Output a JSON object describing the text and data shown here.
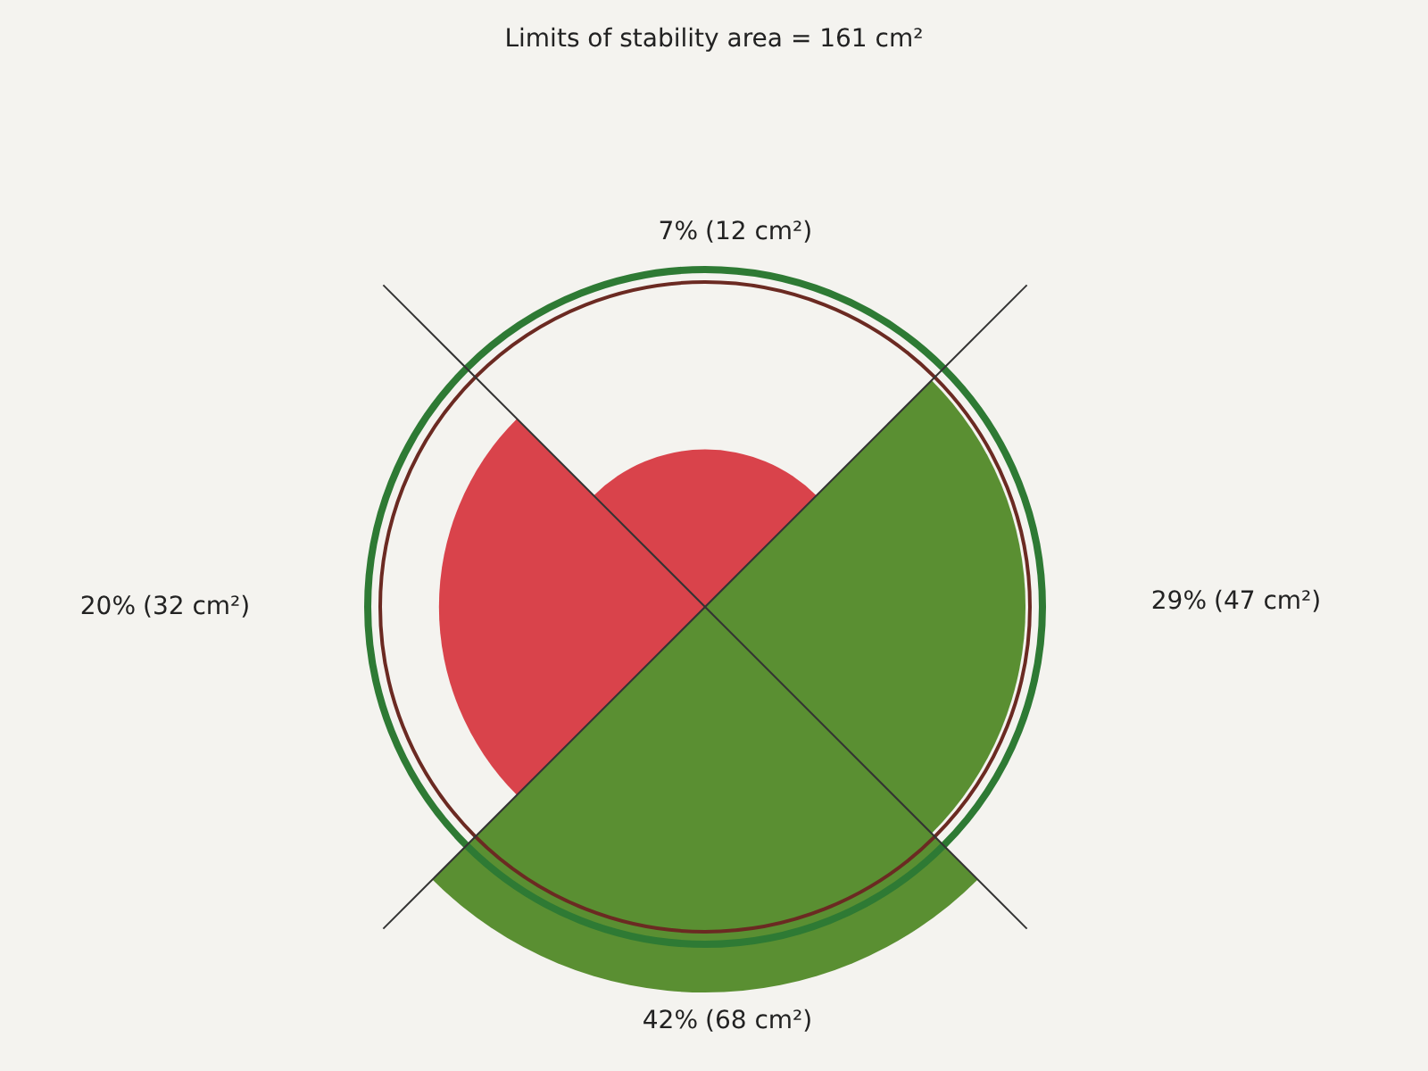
{
  "chart_data": {
    "type": "other",
    "title": "Limits of stability area = 161 cm²",
    "categories": [
      "(12 cm²)",
      "(47 cm²)",
      "(68 cm²)",
      "(32 cm²)"
    ],
    "values": [
      7,
      29,
      42,
      20
    ],
    "value_labels": [
      "7%",
      "29%",
      "42%",
      "20%"
    ],
    "colors": [
      "#d9434b",
      "#5a8f32",
      "#5a8f32",
      "#d9434b"
    ]
  }
}
